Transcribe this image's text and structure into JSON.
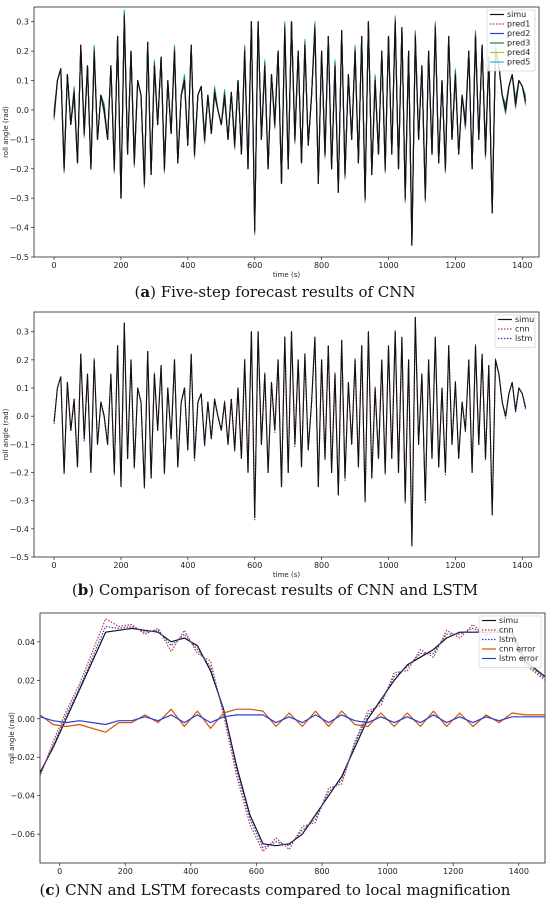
{
  "panels": [
    {
      "caption_letter": "a",
      "caption_text": " Five-step forecast results of CNN",
      "chart_data": {
        "type": "line",
        "xlabel": "time (s)",
        "ylabel": "roll angle (rad)",
        "xlim": [
          -60,
          1450
        ],
        "ylim": [
          -0.5,
          0.35
        ],
        "xticks": [
          0,
          200,
          400,
          600,
          800,
          1000,
          1200,
          1400
        ],
        "yticks": [
          -0.5,
          -0.4,
          -0.3,
          -0.2,
          -0.1,
          0.0,
          0.1,
          0.2,
          0.3
        ],
        "ytick_labels": [
          "−0.5",
          "−0.4",
          "−0.3",
          "−0.2",
          "−0.1",
          "0.0",
          "0.1",
          "0.2",
          "0.3"
        ],
        "legend_position": "top-right",
        "series": [
          {
            "name": "simu",
            "color": "#111111",
            "style": "solid"
          },
          {
            "name": "pred1",
            "color": "#c0392b",
            "style": "dotted"
          },
          {
            "name": "pred2",
            "color": "#2a3fd6",
            "style": "solid"
          },
          {
            "name": "pred3",
            "color": "#1f7a3a",
            "style": "solid"
          },
          {
            "name": "pred4",
            "color": "#b8c21d",
            "style": "solid"
          },
          {
            "name": "pred5",
            "color": "#2fb5c9",
            "style": "solid"
          }
        ],
        "x": [
          0,
          10,
          20,
          30,
          40,
          50,
          60,
          70,
          80,
          90,
          100,
          110,
          120,
          130,
          140,
          150,
          160,
          170,
          180,
          190,
          200,
          210,
          220,
          230,
          240,
          250,
          260,
          270,
          280,
          290,
          300,
          310,
          320,
          330,
          340,
          350,
          360,
          370,
          380,
          390,
          400,
          410,
          420,
          430,
          440,
          450,
          460,
          470,
          480,
          490,
          500,
          510,
          520,
          530,
          540,
          550,
          560,
          570,
          580,
          590,
          600,
          610,
          620,
          630,
          640,
          650,
          660,
          670,
          680,
          690,
          700,
          710,
          720,
          730,
          740,
          750,
          760,
          770,
          780,
          790,
          800,
          810,
          820,
          830,
          840,
          850,
          860,
          870,
          880,
          890,
          900,
          910,
          920,
          930,
          940,
          950,
          960,
          970,
          980,
          990,
          1000,
          1010,
          1020,
          1030,
          1040,
          1050,
          1060,
          1070,
          1080,
          1090,
          1100,
          1110,
          1120,
          1130,
          1140,
          1150,
          1160,
          1170,
          1180,
          1190,
          1200,
          1210,
          1220,
          1230,
          1240,
          1250,
          1260,
          1270,
          1280,
          1290,
          1300,
          1310,
          1320,
          1330,
          1340,
          1350,
          1360,
          1370,
          1380,
          1390,
          1400,
          1410
        ],
        "y": [
          -0.02,
          0.1,
          0.14,
          -0.2,
          0.12,
          -0.05,
          0.06,
          -0.18,
          0.22,
          -0.08,
          0.15,
          -0.2,
          0.2,
          -0.1,
          0.05,
          0.0,
          -0.1,
          0.15,
          -0.2,
          0.25,
          -0.3,
          0.32,
          -0.15,
          0.2,
          -0.18,
          0.1,
          0.05,
          -0.25,
          0.23,
          -0.22,
          0.15,
          -0.05,
          0.18,
          -0.2,
          0.1,
          -0.08,
          0.2,
          -0.18,
          0.05,
          0.1,
          -0.12,
          0.22,
          -0.15,
          0.05,
          0.08,
          -0.1,
          0.05,
          -0.08,
          0.06,
          0.0,
          -0.05,
          0.05,
          -0.1,
          0.06,
          -0.12,
          0.1,
          -0.15,
          0.2,
          -0.2,
          0.3,
          -0.41,
          0.3,
          -0.1,
          0.15,
          -0.2,
          0.12,
          -0.05,
          0.2,
          -0.25,
          0.28,
          -0.2,
          0.3,
          -0.1,
          0.2,
          -0.18,
          0.22,
          -0.12,
          0.05,
          0.28,
          -0.25,
          0.2,
          -0.15,
          0.25,
          -0.2,
          0.15,
          -0.28,
          0.27,
          -0.22,
          0.12,
          -0.1,
          0.2,
          -0.18,
          0.25,
          -0.3,
          0.3,
          -0.22,
          0.1,
          -0.15,
          0.2,
          -0.2,
          0.25,
          -0.15,
          0.3,
          -0.2,
          0.28,
          -0.3,
          0.2,
          -0.46,
          0.25,
          -0.1,
          0.15,
          -0.3,
          0.2,
          -0.15,
          0.28,
          -0.18,
          0.1,
          -0.2,
          0.25,
          -0.1,
          0.12,
          -0.15,
          0.05,
          -0.05,
          0.2,
          -0.2,
          0.25,
          -0.1,
          0.22,
          -0.15,
          0.18,
          -0.35,
          0.2,
          0.15,
          0.05,
          0.0,
          0.08,
          0.12,
          0.02,
          0.1,
          0.08,
          0.03
        ]
      }
    },
    {
      "caption_letter": "b",
      "caption_text": " Comparison of forecast results of CNN and LSTM",
      "chart_data": {
        "type": "line",
        "xlabel": "time (s)",
        "ylabel": "roll angle (rad)",
        "xlim": [
          -60,
          1450
        ],
        "ylim": [
          -0.5,
          0.37
        ],
        "xticks": [
          0,
          200,
          400,
          600,
          800,
          1000,
          1200,
          1400
        ],
        "yticks": [
          -0.5,
          -0.4,
          -0.3,
          -0.2,
          -0.1,
          0.0,
          0.1,
          0.2,
          0.3
        ],
        "ytick_labels": [
          "−0.5",
          "−0.4",
          "−0.3",
          "−0.2",
          "−0.1",
          "0.0",
          "0.1",
          "0.2",
          "0.3"
        ],
        "legend_position": "top-right",
        "series": [
          {
            "name": "simu",
            "color": "#111111",
            "style": "solid"
          },
          {
            "name": "cnn",
            "color": "#c0392b",
            "style": "dotted"
          },
          {
            "name": "lstm",
            "color": "#2a3fd6",
            "style": "dotted"
          }
        ],
        "x": [
          0,
          10,
          20,
          30,
          40,
          50,
          60,
          70,
          80,
          90,
          100,
          110,
          120,
          130,
          140,
          150,
          160,
          170,
          180,
          190,
          200,
          210,
          220,
          230,
          240,
          250,
          260,
          270,
          280,
          290,
          300,
          310,
          320,
          330,
          340,
          350,
          360,
          370,
          380,
          390,
          400,
          410,
          420,
          430,
          440,
          450,
          460,
          470,
          480,
          490,
          500,
          510,
          520,
          530,
          540,
          550,
          560,
          570,
          580,
          590,
          600,
          610,
          620,
          630,
          640,
          650,
          660,
          670,
          680,
          690,
          700,
          710,
          720,
          730,
          740,
          750,
          760,
          770,
          780,
          790,
          800,
          810,
          820,
          830,
          840,
          850,
          860,
          870,
          880,
          890,
          900,
          910,
          920,
          930,
          940,
          950,
          960,
          970,
          980,
          990,
          1000,
          1010,
          1020,
          1030,
          1040,
          1050,
          1060,
          1070,
          1080,
          1090,
          1100,
          1110,
          1120,
          1130,
          1140,
          1150,
          1160,
          1170,
          1180,
          1190,
          1200,
          1210,
          1220,
          1230,
          1240,
          1250,
          1260,
          1270,
          1280,
          1290,
          1300,
          1310,
          1320,
          1330,
          1340,
          1350,
          1360,
          1370,
          1380,
          1390,
          1400,
          1410
        ],
        "y": [
          -0.02,
          0.1,
          0.14,
          -0.2,
          0.12,
          -0.05,
          0.06,
          -0.18,
          0.22,
          -0.08,
          0.15,
          -0.2,
          0.2,
          -0.1,
          0.05,
          0.0,
          -0.1,
          0.15,
          -0.2,
          0.25,
          -0.25,
          0.33,
          -0.15,
          0.2,
          -0.18,
          0.1,
          0.05,
          -0.25,
          0.23,
          -0.22,
          0.15,
          -0.05,
          0.18,
          -0.2,
          0.1,
          -0.08,
          0.2,
          -0.18,
          0.05,
          0.1,
          -0.12,
          0.22,
          -0.15,
          0.05,
          0.08,
          -0.1,
          0.05,
          -0.08,
          0.06,
          0.0,
          -0.05,
          0.05,
          -0.1,
          0.06,
          -0.12,
          0.1,
          -0.15,
          0.2,
          -0.2,
          0.3,
          -0.36,
          0.3,
          -0.1,
          0.15,
          -0.2,
          0.12,
          -0.05,
          0.2,
          -0.25,
          0.28,
          -0.2,
          0.3,
          -0.1,
          0.2,
          -0.18,
          0.22,
          -0.12,
          0.05,
          0.28,
          -0.25,
          0.2,
          -0.15,
          0.25,
          -0.2,
          0.15,
          -0.28,
          0.27,
          -0.22,
          0.12,
          -0.1,
          0.2,
          -0.18,
          0.25,
          -0.3,
          0.3,
          -0.22,
          0.1,
          -0.15,
          0.2,
          -0.2,
          0.25,
          -0.15,
          0.3,
          -0.2,
          0.28,
          -0.3,
          0.2,
          -0.46,
          0.35,
          -0.1,
          0.15,
          -0.3,
          0.2,
          -0.15,
          0.28,
          -0.18,
          0.1,
          -0.2,
          0.25,
          -0.1,
          0.12,
          -0.15,
          0.05,
          -0.05,
          0.2,
          -0.2,
          0.25,
          -0.1,
          0.22,
          -0.15,
          0.18,
          -0.35,
          0.2,
          0.15,
          0.05,
          0.0,
          0.08,
          0.12,
          0.02,
          0.1,
          0.08,
          0.03
        ]
      }
    },
    {
      "caption_letter": "c",
      "caption_text": " CNN and LSTM forecasts compared to local magnification",
      "chart_data": {
        "type": "line",
        "xlabel": "time (s)",
        "ylabel": "roll angle (rad)",
        "xlim": [
          -60,
          1480
        ],
        "ylim": [
          -0.075,
          0.055
        ],
        "xticks": [
          0,
          200,
          400,
          600,
          800,
          1000,
          1200,
          1400
        ],
        "yticks": [
          -0.06,
          -0.04,
          -0.02,
          0.0,
          0.02,
          0.04
        ],
        "ytick_labels": [
          "−0.06",
          "−0.04",
          "−0.02",
          "0.00",
          "0.02",
          "0.04"
        ],
        "legend_position": "top-right",
        "series": [
          {
            "name": "simu",
            "color": "#111111",
            "style": "solid",
            "values": [
              -0.028,
              -0.015,
              0.0,
              0.015,
              0.03,
              0.045,
              0.046,
              0.047,
              0.046,
              0.045,
              0.04,
              0.042,
              0.038,
              0.025,
              0.005,
              -0.025,
              -0.05,
              -0.065,
              -0.066,
              -0.065,
              -0.06,
              -0.05,
              -0.04,
              -0.03,
              -0.015,
              0.0,
              0.01,
              0.02,
              0.028,
              0.032,
              0.036,
              0.042,
              0.045,
              0.045,
              0.045,
              0.045,
              0.045,
              0.03,
              0.022
            ]
          },
          {
            "name": "cnn",
            "color": "#c0392b",
            "style": "dotted",
            "values": [
              -0.03,
              -0.012,
              0.004,
              0.018,
              0.035,
              0.052,
              0.048,
              0.049,
              0.044,
              0.047,
              0.035,
              0.046,
              0.034,
              0.03,
              0.002,
              -0.03,
              -0.055,
              -0.069,
              -0.062,
              -0.068,
              -0.056,
              -0.054,
              -0.036,
              -0.034,
              -0.012,
              0.004,
              0.007,
              0.024,
              0.025,
              0.036,
              0.032,
              0.046,
              0.042,
              0.049,
              0.043,
              0.047,
              0.042,
              0.028,
              0.02
            ]
          },
          {
            "name": "lstm",
            "color": "#2a3fd6",
            "style": "dotted",
            "values": [
              -0.029,
              -0.014,
              0.002,
              0.016,
              0.032,
              0.048,
              0.047,
              0.048,
              0.045,
              0.046,
              0.038,
              0.044,
              0.036,
              0.027,
              0.004,
              -0.027,
              -0.052,
              -0.067,
              -0.064,
              -0.066,
              -0.058,
              -0.052,
              -0.038,
              -0.032,
              -0.013,
              0.002,
              0.009,
              0.022,
              0.027,
              0.034,
              0.034,
              0.044,
              0.044,
              0.047,
              0.044,
              0.046,
              0.044,
              0.029,
              0.021
            ]
          },
          {
            "name": "cnn error",
            "color": "#d35400",
            "style": "solid",
            "values": [
              0.002,
              -0.003,
              -0.004,
              -0.003,
              -0.005,
              -0.007,
              -0.002,
              -0.002,
              0.002,
              -0.002,
              0.005,
              -0.004,
              0.004,
              -0.005,
              0.003,
              0.005,
              0.005,
              0.004,
              -0.004,
              0.003,
              -0.004,
              0.004,
              -0.004,
              0.004,
              -0.003,
              -0.004,
              0.003,
              -0.004,
              0.003,
              -0.004,
              0.004,
              -0.004,
              0.003,
              -0.004,
              0.002,
              -0.002,
              0.003,
              0.002,
              0.002
            ]
          },
          {
            "name": "lstm error",
            "color": "#2a3fd6",
            "style": "solid",
            "values": [
              0.001,
              -0.001,
              -0.002,
              -0.001,
              -0.002,
              -0.003,
              -0.001,
              -0.001,
              0.001,
              -0.001,
              0.002,
              -0.002,
              0.002,
              -0.002,
              0.001,
              0.002,
              0.002,
              0.002,
              -0.002,
              0.001,
              -0.002,
              0.002,
              -0.002,
              0.002,
              -0.001,
              -0.002,
              0.001,
              -0.002,
              0.001,
              -0.002,
              0.002,
              -0.002,
              0.001,
              -0.002,
              0.001,
              -0.001,
              0.001,
              0.001,
              0.001
            ]
          }
        ],
        "x": [
          -60,
          -20,
          20,
          60,
          100,
          140,
          180,
          220,
          260,
          300,
          340,
          380,
          420,
          460,
          500,
          540,
          580,
          620,
          660,
          700,
          740,
          780,
          820,
          860,
          900,
          940,
          980,
          1020,
          1060,
          1100,
          1140,
          1180,
          1220,
          1260,
          1300,
          1340,
          1380,
          1420,
          1480
        ]
      }
    }
  ]
}
